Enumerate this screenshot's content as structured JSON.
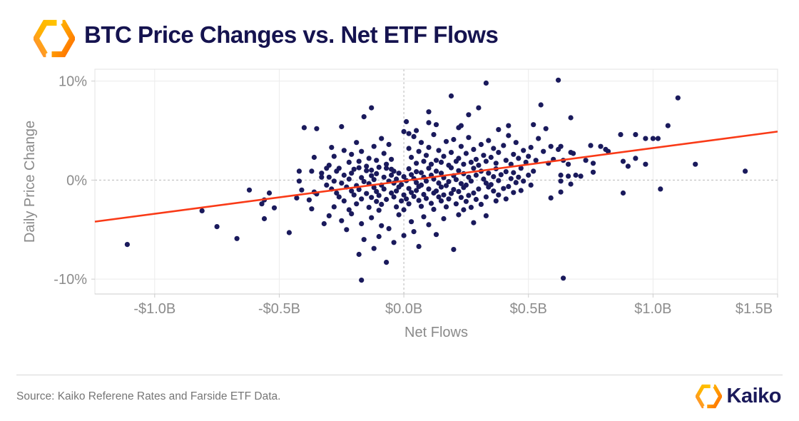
{
  "header": {
    "title": "BTC Price Changes vs. Net ETF Flows"
  },
  "footer": {
    "source": "Source: Kaiko Referene Rates and Farside ETF Data.",
    "brand": "Kaiko"
  },
  "icons": {
    "header_logo": "kaiko-hexagon-logo",
    "footer_logo": "kaiko-hexagon-logo"
  },
  "colors": {
    "title": "#15134f",
    "point": "#1a1a5c",
    "trend": "#f93a17",
    "grid": "#ececec",
    "dashed": "#b8b8b8",
    "border": "#e3e3e3",
    "axis_line": "#cccccc",
    "tick_text": "#8c8c8c",
    "logo_amber": "#ffb300",
    "logo_orange": "#ff8800"
  },
  "chart_data": {
    "type": "scatter",
    "title": "BTC Price Changes vs. Net ETF Flows",
    "xlabel": "Net Flows",
    "ylabel": "Daily Price Change",
    "xlim": [
      -1.24,
      1.5
    ],
    "ylim": [
      -11.5,
      11.2
    ],
    "grid": true,
    "legend": "none",
    "x_ticks": [
      {
        "value": -1.0,
        "label": "-$1.0B"
      },
      {
        "value": -0.5,
        "label": "-$0.5B"
      },
      {
        "value": 0.0,
        "label": "$0.0B"
      },
      {
        "value": 0.5,
        "label": "$0.5B"
      },
      {
        "value": 1.0,
        "label": "$1.0B"
      },
      {
        "value": 1.5,
        "label": "$1.5B"
      }
    ],
    "y_ticks": [
      {
        "value": 10,
        "label": "10%"
      },
      {
        "value": 0,
        "label": "0%"
      },
      {
        "value": -10,
        "label": "-10%"
      }
    ],
    "zero_lines": "dashed",
    "trend_line": {
      "slope_pct_per_billion": 3.32,
      "intercept_pct": -0.08
    },
    "points": [
      [
        -1.11,
        -6.5
      ],
      [
        -0.81,
        -3.1
      ],
      [
        -0.75,
        -4.7
      ],
      [
        -0.67,
        -5.9
      ],
      [
        -0.62,
        -1.0
      ],
      [
        -0.56,
        -2.0
      ],
      [
        -0.57,
        -2.4
      ],
      [
        -0.56,
        -3.9
      ],
      [
        -0.54,
        -1.3
      ],
      [
        -0.52,
        -2.8
      ],
      [
        -0.46,
        -5.3
      ],
      [
        -0.43,
        -1.8
      ],
      [
        -0.42,
        0.9
      ],
      [
        -0.42,
        -0.1
      ],
      [
        -0.41,
        -1.0
      ],
      [
        -0.4,
        5.3
      ],
      [
        -0.38,
        -2.0
      ],
      [
        -0.37,
        -2.9
      ],
      [
        -0.37,
        0.9
      ],
      [
        -0.36,
        -1.2
      ],
      [
        -0.35,
        5.2
      ],
      [
        -0.35,
        -1.4
      ],
      [
        -0.36,
        2.3
      ],
      [
        -0.33,
        0.3
      ],
      [
        -0.3,
        1.5
      ],
      [
        -0.29,
        3.3
      ],
      [
        -0.28,
        2.4
      ],
      [
        -0.26,
        1.2
      ],
      [
        -0.25,
        5.4
      ],
      [
        -0.24,
        3.0
      ],
      [
        -0.22,
        1.8
      ],
      [
        -0.21,
        2.6
      ],
      [
        -0.2,
        1.1
      ],
      [
        -0.19,
        3.8
      ],
      [
        -0.18,
        1.9
      ],
      [
        -0.17,
        2.9
      ],
      [
        -0.16,
        6.4
      ],
      [
        -0.15,
        1.4
      ],
      [
        -0.14,
        2.2
      ],
      [
        -0.13,
        7.3
      ],
      [
        -0.13,
        1.0
      ],
      [
        -0.12,
        3.4
      ],
      [
        -0.11,
        2.0
      ],
      [
        -0.1,
        1.3
      ],
      [
        -0.09,
        4.2
      ],
      [
        -0.08,
        2.7
      ],
      [
        -0.07,
        1.6
      ],
      [
        -0.06,
        3.6
      ],
      [
        -0.05,
        1.1
      ],
      [
        -0.05,
        2.1
      ],
      [
        0.33,
        9.8
      ],
      [
        0.62,
        10.1
      ],
      [
        0.19,
        8.5
      ],
      [
        1.1,
        8.3
      ],
      [
        0.55,
        7.6
      ],
      [
        0.3,
        7.3
      ],
      [
        0.1,
        6.9
      ],
      [
        0.26,
        6.6
      ],
      [
        0.01,
        5.9
      ],
      [
        0.13,
        5.6
      ],
      [
        1.06,
        5.5
      ],
      [
        0.22,
        5.3
      ],
      [
        0.38,
        5.1
      ],
      [
        0.05,
        5.0
      ],
      [
        0.1,
        5.8
      ],
      [
        0.23,
        5.5
      ],
      [
        0.42,
        5.5
      ],
      [
        0.52,
        5.6
      ],
      [
        0.57,
        5.2
      ],
      [
        0.02,
        4.7
      ],
      [
        0.0,
        4.9
      ],
      [
        0.02,
        3.2
      ],
      [
        0.03,
        2.3
      ],
      [
        0.04,
        4.4
      ],
      [
        0.05,
        1.7
      ],
      [
        0.06,
        2.9
      ],
      [
        0.07,
        3.8
      ],
      [
        0.08,
        1.9
      ],
      [
        0.09,
        2.5
      ],
      [
        0.1,
        3.3
      ],
      [
        0.11,
        1.6
      ],
      [
        0.12,
        4.6
      ],
      [
        0.13,
        2.0
      ],
      [
        0.14,
        3.0
      ],
      [
        0.15,
        1.8
      ],
      [
        0.16,
        2.4
      ],
      [
        0.17,
        3.9
      ],
      [
        0.18,
        1.5
      ],
      [
        0.19,
        2.8
      ],
      [
        0.2,
        4.1
      ],
      [
        0.21,
        1.9
      ],
      [
        0.22,
        2.2
      ],
      [
        0.23,
        3.4
      ],
      [
        0.24,
        1.6
      ],
      [
        0.25,
        2.7
      ],
      [
        0.26,
        4.3
      ],
      [
        0.27,
        1.8
      ],
      [
        0.28,
        3.1
      ],
      [
        0.29,
        2.1
      ],
      [
        0.3,
        1.5
      ],
      [
        0.31,
        3.6
      ],
      [
        0.32,
        2.5
      ],
      [
        0.33,
        1.9
      ],
      [
        0.34,
        4.0
      ],
      [
        0.35,
        2.3
      ],
      [
        0.36,
        3.2
      ],
      [
        0.37,
        1.7
      ],
      [
        0.38,
        2.8
      ],
      [
        0.4,
        3.5
      ],
      [
        0.41,
        2.0
      ],
      [
        0.42,
        4.5
      ],
      [
        0.43,
        1.6
      ],
      [
        0.44,
        2.6
      ],
      [
        0.45,
        3.8
      ],
      [
        0.46,
        2.2
      ],
      [
        0.48,
        3.0
      ],
      [
        0.49,
        1.8
      ],
      [
        0.5,
        2.4
      ],
      [
        0.51,
        3.3
      ],
      [
        0.53,
        2.0
      ],
      [
        0.54,
        4.2
      ],
      [
        0.56,
        2.9
      ],
      [
        0.58,
        1.7
      ],
      [
        0.59,
        3.4
      ],
      [
        0.6,
        2.1
      ],
      [
        0.62,
        3.1
      ],
      [
        0.63,
        3.4
      ],
      [
        0.63,
        0.5
      ],
      [
        0.63,
        -0.1
      ],
      [
        0.64,
        2.0
      ],
      [
        0.64,
        -9.9
      ],
      [
        0.66,
        1.6
      ],
      [
        0.66,
        0.4
      ],
      [
        0.67,
        6.3
      ],
      [
        0.67,
        2.8
      ],
      [
        0.67,
        -0.4
      ],
      [
        0.68,
        2.7
      ],
      [
        0.69,
        0.5
      ],
      [
        0.71,
        0.4
      ],
      [
        0.73,
        2.0
      ],
      [
        0.75,
        3.5
      ],
      [
        0.76,
        1.7
      ],
      [
        0.76,
        0.8
      ],
      [
        0.79,
        3.4
      ],
      [
        0.81,
        3.1
      ],
      [
        0.82,
        2.9
      ],
      [
        0.59,
        -1.8
      ],
      [
        0.63,
        -1.2
      ],
      [
        0.87,
        4.6
      ],
      [
        0.88,
        1.9
      ],
      [
        0.88,
        -1.3
      ],
      [
        0.9,
        1.4
      ],
      [
        0.93,
        2.2
      ],
      [
        0.93,
        4.6
      ],
      [
        0.97,
        4.2
      ],
      [
        0.97,
        1.6
      ],
      [
        1.0,
        4.2
      ],
      [
        1.02,
        4.2
      ],
      [
        1.03,
        -0.9
      ],
      [
        1.17,
        1.6
      ],
      [
        1.37,
        0.9
      ],
      [
        -0.31,
        1.2
      ],
      [
        -0.18,
        1.25
      ],
      [
        -0.07,
        1.2
      ],
      [
        0.02,
        1.15
      ],
      [
        0.1,
        1.2
      ],
      [
        0.19,
        1.25
      ],
      [
        0.28,
        1.2
      ],
      [
        0.37,
        1.15
      ],
      [
        0.47,
        1.2
      ],
      [
        -0.27,
        0.9
      ],
      [
        -0.15,
        0.95
      ],
      [
        -0.04,
        0.9
      ],
      [
        0.05,
        0.85
      ],
      [
        0.13,
        0.9
      ],
      [
        0.22,
        0.95
      ],
      [
        0.31,
        0.9
      ],
      [
        0.41,
        0.85
      ],
      [
        0.52,
        0.9
      ],
      [
        -0.33,
        0.7
      ],
      [
        -0.21,
        0.7
      ],
      [
        -0.11,
        0.65
      ],
      [
        -0.02,
        0.7
      ],
      [
        0.07,
        0.75
      ],
      [
        0.15,
        0.7
      ],
      [
        0.24,
        0.65
      ],
      [
        0.34,
        0.7
      ],
      [
        0.44,
        0.75
      ],
      [
        -0.24,
        0.5
      ],
      [
        -0.13,
        0.45
      ],
      [
        -0.05,
        0.5
      ],
      [
        0.03,
        0.55
      ],
      [
        0.11,
        0.5
      ],
      [
        0.2,
        0.45
      ],
      [
        0.29,
        0.5
      ],
      [
        0.39,
        0.55
      ],
      [
        0.5,
        0.5
      ],
      [
        -0.3,
        0.3
      ],
      [
        -0.17,
        0.25
      ],
      [
        -0.08,
        0.3
      ],
      [
        0.0,
        0.35
      ],
      [
        0.08,
        0.3
      ],
      [
        0.16,
        0.25
      ],
      [
        0.26,
        0.3
      ],
      [
        0.36,
        0.35
      ],
      [
        0.46,
        0.3
      ],
      [
        -0.22,
        0.1
      ],
      [
        -0.12,
        0.05
      ],
      [
        -0.03,
        0.1
      ],
      [
        0.04,
        0.15
      ],
      [
        0.12,
        0.1
      ],
      [
        0.21,
        0.05
      ],
      [
        0.32,
        0.1
      ],
      [
        0.43,
        0.15
      ],
      [
        -0.28,
        -0.1
      ],
      [
        -0.16,
        -0.15
      ],
      [
        -0.06,
        -0.1
      ],
      [
        0.01,
        -0.05
      ],
      [
        0.09,
        -0.1
      ],
      [
        0.18,
        -0.15
      ],
      [
        0.27,
        -0.1
      ],
      [
        0.38,
        -0.05
      ],
      [
        0.48,
        -0.1
      ],
      [
        -0.25,
        -0.3
      ],
      [
        -0.14,
        -0.35
      ],
      [
        -0.04,
        -0.3
      ],
      [
        0.05,
        -0.25
      ],
      [
        0.14,
        -0.3
      ],
      [
        0.23,
        -0.35
      ],
      [
        0.33,
        -0.3
      ],
      [
        0.45,
        -0.25
      ],
      [
        -0.31,
        -0.5
      ],
      [
        -0.19,
        -0.55
      ],
      [
        -0.09,
        -0.5
      ],
      [
        -0.01,
        -0.45
      ],
      [
        0.07,
        -0.5
      ],
      [
        0.17,
        -0.55
      ],
      [
        0.25,
        -0.5
      ],
      [
        0.35,
        -0.45
      ],
      [
        0.51,
        -0.5
      ],
      [
        -0.23,
        -0.7
      ],
      [
        -0.12,
        -0.75
      ],
      [
        -0.02,
        -0.7
      ],
      [
        0.06,
        -0.65
      ],
      [
        0.15,
        -0.7
      ],
      [
        0.24,
        -0.75
      ],
      [
        0.34,
        -0.7
      ],
      [
        0.42,
        -0.65
      ],
      [
        -0.29,
        -0.9
      ],
      [
        -0.18,
        -0.95
      ],
      [
        -0.08,
        -0.9
      ],
      [
        0.02,
        -0.85
      ],
      [
        0.1,
        -0.9
      ],
      [
        0.2,
        -0.95
      ],
      [
        0.3,
        -0.9
      ],
      [
        0.4,
        -0.85
      ],
      [
        -0.21,
        -1.1
      ],
      [
        -0.11,
        -1.15
      ],
      [
        -0.03,
        -1.1
      ],
      [
        0.05,
        -1.05
      ],
      [
        0.13,
        -1.1
      ],
      [
        0.22,
        -1.15
      ],
      [
        0.36,
        -1.1
      ],
      [
        0.47,
        -1.05
      ],
      [
        -0.27,
        -1.3
      ],
      [
        -0.15,
        -1.35
      ],
      [
        -0.05,
        -1.3
      ],
      [
        0.03,
        -1.25
      ],
      [
        0.12,
        -1.3
      ],
      [
        0.19,
        -1.35
      ],
      [
        0.28,
        -1.3
      ],
      [
        0.44,
        -1.25
      ],
      [
        -0.2,
        -1.5
      ],
      [
        -0.1,
        -1.55
      ],
      [
        0.0,
        -1.5
      ],
      [
        0.08,
        -1.45
      ],
      [
        0.16,
        -1.5
      ],
      [
        0.26,
        -1.55
      ],
      [
        0.38,
        -1.5
      ],
      [
        -0.26,
        -1.7
      ],
      [
        -0.13,
        -1.75
      ],
      [
        -0.04,
        -1.7
      ],
      [
        0.04,
        -1.65
      ],
      [
        0.14,
        -1.7
      ],
      [
        0.23,
        -1.75
      ],
      [
        0.33,
        -1.7
      ],
      [
        -0.17,
        -1.9
      ],
      [
        -0.07,
        -1.95
      ],
      [
        0.01,
        -1.9
      ],
      [
        0.09,
        -1.85
      ],
      [
        0.18,
        -1.9
      ],
      [
        0.29,
        -1.95
      ],
      [
        0.41,
        -1.9
      ],
      [
        -0.24,
        -2.1
      ],
      [
        -0.11,
        -2.15
      ],
      [
        -0.01,
        -2.1
      ],
      [
        0.06,
        -2.05
      ],
      [
        0.15,
        -2.1
      ],
      [
        0.25,
        -2.15
      ],
      [
        0.37,
        -2.1
      ],
      [
        -0.19,
        -2.4
      ],
      [
        -0.09,
        -2.45
      ],
      [
        0.02,
        -2.4
      ],
      [
        0.11,
        -2.35
      ],
      [
        0.21,
        -2.4
      ],
      [
        0.31,
        -2.45
      ],
      [
        -0.28,
        -2.7
      ],
      [
        -0.14,
        -2.75
      ],
      [
        -0.03,
        -2.7
      ],
      [
        0.07,
        -2.65
      ],
      [
        0.17,
        -2.7
      ],
      [
        0.27,
        -2.75
      ],
      [
        -0.22,
        -3.0
      ],
      [
        -0.1,
        -3.05
      ],
      [
        0.0,
        -3.0
      ],
      [
        0.12,
        -2.95
      ],
      [
        0.24,
        -3.0
      ],
      [
        -0.3,
        -3.6
      ],
      [
        -0.25,
        -4.1
      ],
      [
        -0.21,
        -3.4
      ],
      [
        -0.17,
        -4.4
      ],
      [
        -0.16,
        -6.0
      ],
      [
        -0.13,
        -3.8
      ],
      [
        -0.1,
        -5.7
      ],
      [
        -0.09,
        -4.6
      ],
      [
        -0.06,
        -4.9
      ],
      [
        -0.04,
        -6.3
      ],
      [
        -0.02,
        -3.5
      ],
      [
        0.0,
        -5.6
      ],
      [
        0.03,
        -4.2
      ],
      [
        0.04,
        -5.2
      ],
      [
        0.06,
        -6.7
      ],
      [
        0.08,
        -3.7
      ],
      [
        0.1,
        -4.5
      ],
      [
        0.13,
        -5.5
      ],
      [
        0.16,
        -3.9
      ],
      [
        0.2,
        -7.0
      ],
      [
        0.22,
        -3.5
      ],
      [
        0.28,
        -4.3
      ],
      [
        0.33,
        -3.6
      ],
      [
        -0.23,
        -5.0
      ],
      [
        -0.32,
        -4.4
      ],
      [
        -0.12,
        -6.9
      ],
      [
        -0.18,
        -7.5
      ],
      [
        -0.07,
        -8.3
      ],
      [
        -0.17,
        -10.1
      ]
    ]
  }
}
